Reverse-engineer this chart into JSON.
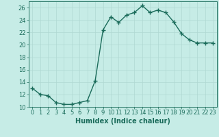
{
  "x": [
    0,
    1,
    2,
    3,
    4,
    5,
    6,
    7,
    8,
    9,
    10,
    11,
    12,
    13,
    14,
    15,
    16,
    17,
    18,
    19,
    20,
    21,
    22,
    23
  ],
  "y": [
    13,
    12,
    11.8,
    10.7,
    10.4,
    10.4,
    10.7,
    11,
    14.2,
    22.4,
    24.5,
    23.6,
    24.8,
    25.2,
    26.3,
    25.2,
    25.6,
    25.2,
    23.7,
    21.8,
    20.8,
    20.3,
    20.3,
    20.3
  ],
  "line_color": "#1a6b5a",
  "bg_color": "#c6ece6",
  "grid_color": "#b0d8d2",
  "xlabel": "Humidex (Indice chaleur)",
  "xlabel_fontsize": 7,
  "tick_label_fontsize": 6,
  "ylim": [
    10,
    27
  ],
  "yticks": [
    10,
    12,
    14,
    16,
    18,
    20,
    22,
    24,
    26
  ],
  "xlim": [
    -0.5,
    23.5
  ],
  "xticks": [
    0,
    1,
    2,
    3,
    4,
    5,
    6,
    7,
    8,
    9,
    10,
    11,
    12,
    13,
    14,
    15,
    16,
    17,
    18,
    19,
    20,
    21,
    22,
    23
  ],
  "marker": "+",
  "markersize": 4,
  "linewidth": 1.0
}
